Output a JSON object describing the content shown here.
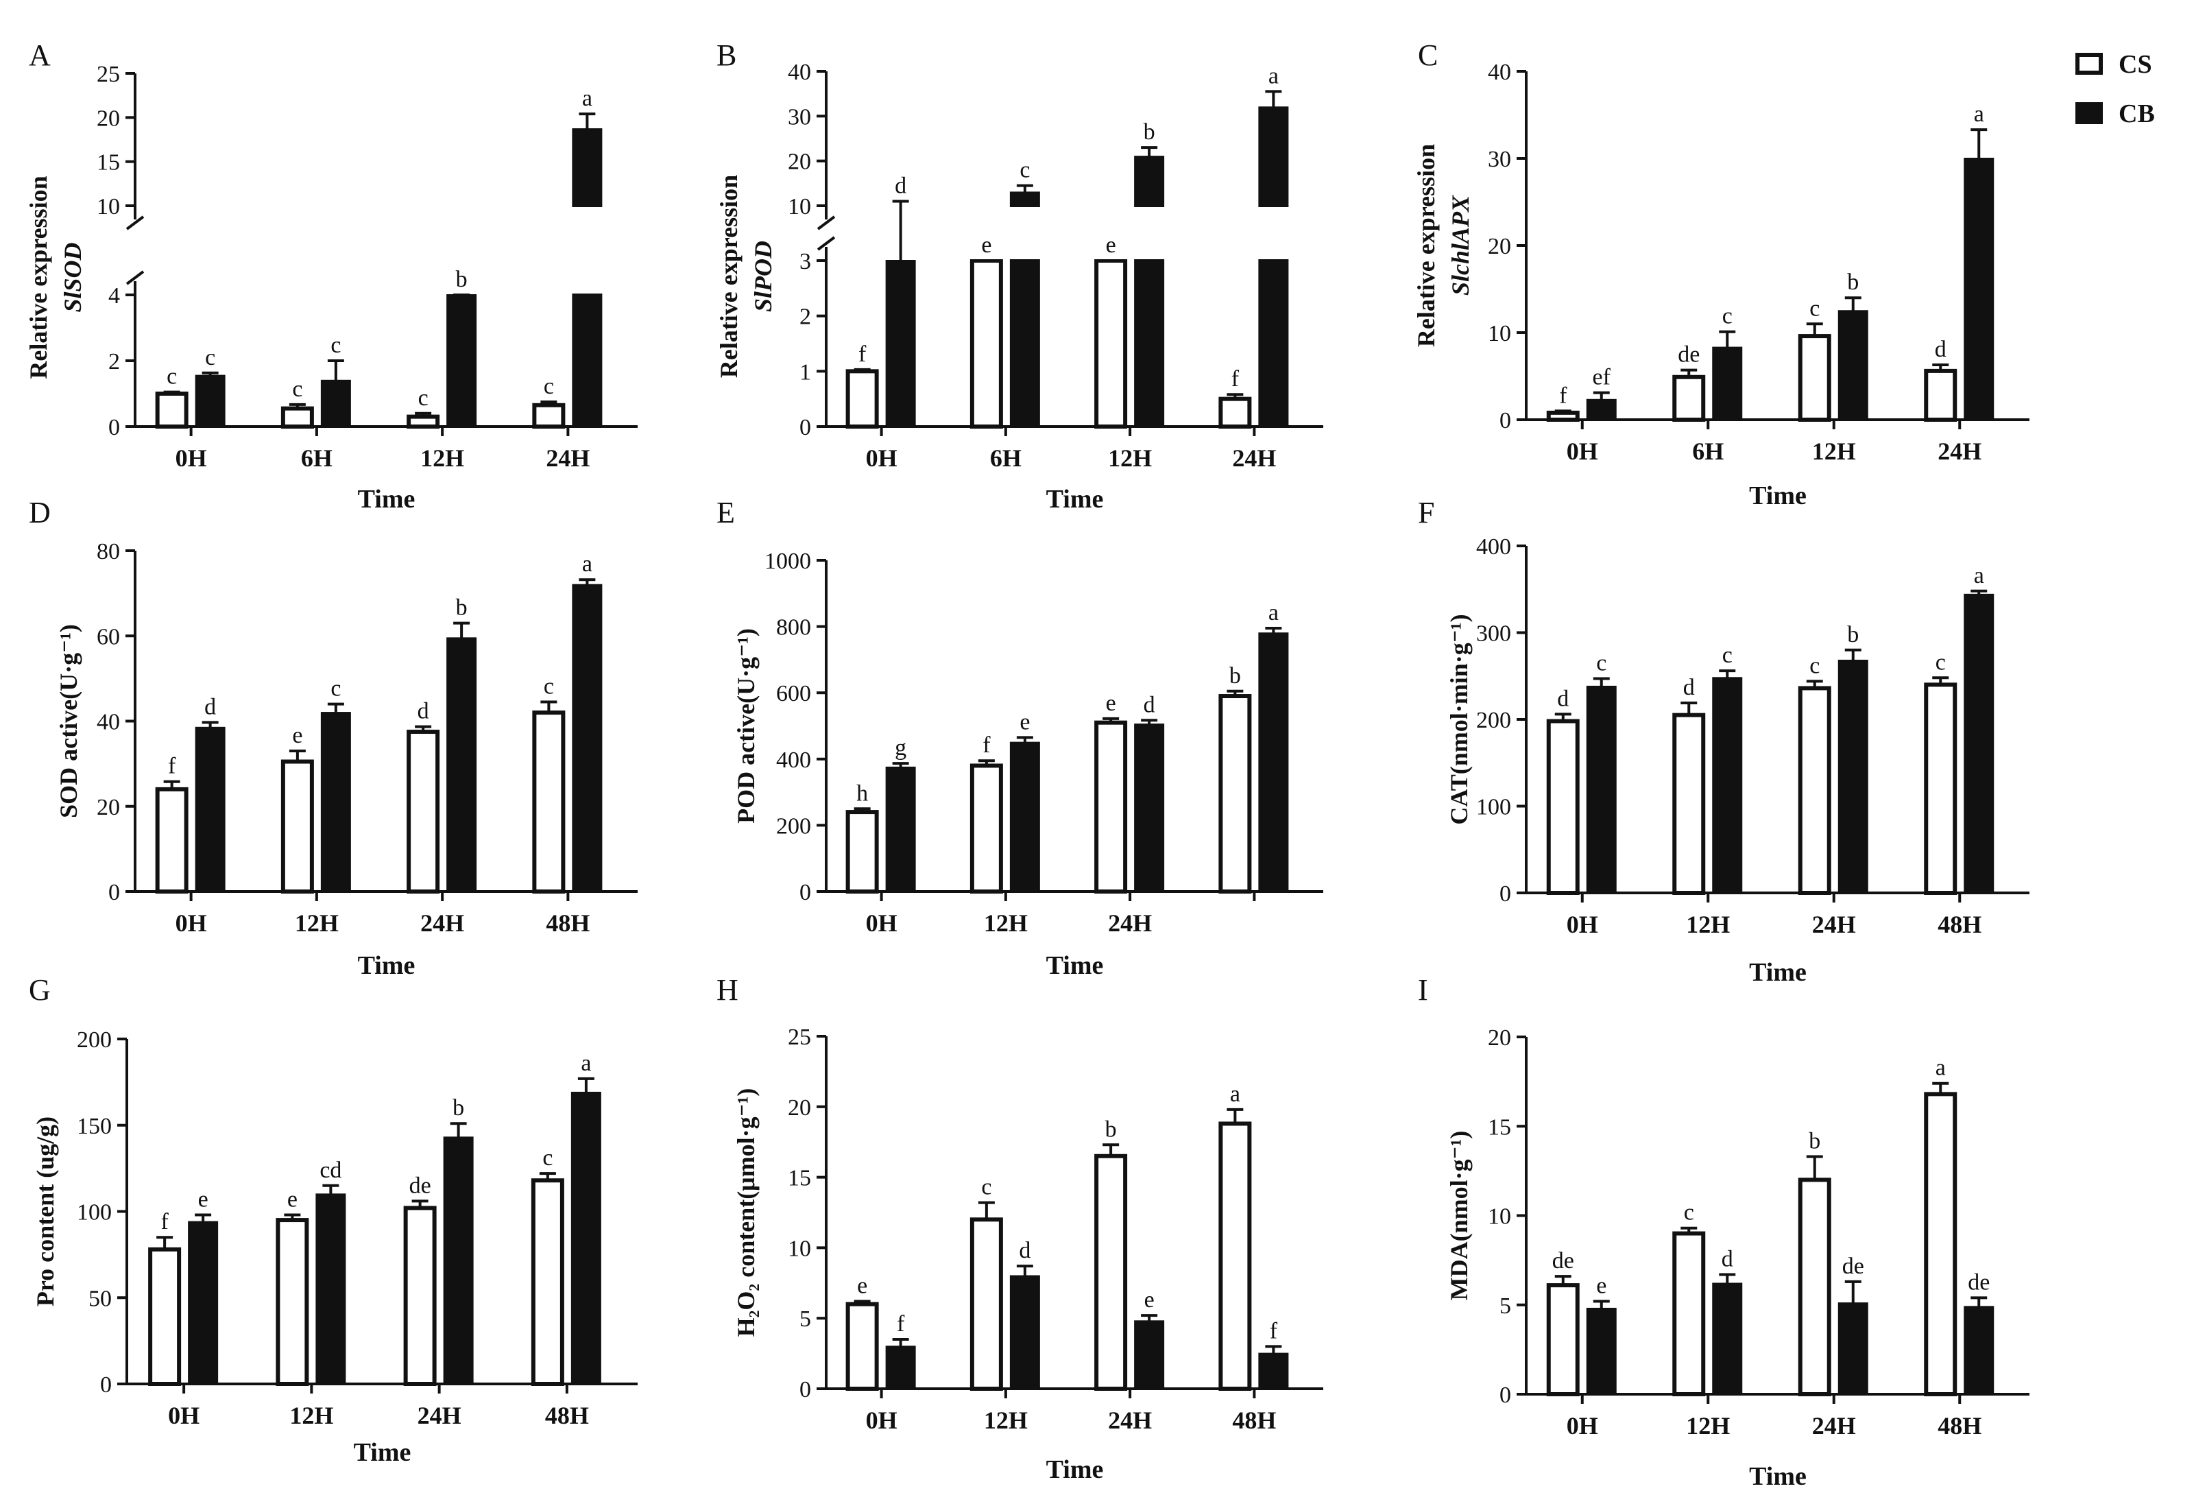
{
  "legend": {
    "items": [
      {
        "label": "CS",
        "fill": "#ffffff"
      },
      {
        "label": "CB",
        "fill": "#111111"
      }
    ]
  },
  "chart_data": [
    {
      "panel": "A",
      "type": "bar",
      "ylabel": [
        "Relative expression",
        "SlSOD"
      ],
      "xlabel": "Time",
      "categories": [
        "0H",
        "6H",
        "12H",
        "24H"
      ],
      "axis_break": {
        "lower_range": [
          0,
          4
        ],
        "upper_range": [
          10,
          25
        ],
        "lower_ticks": [
          0,
          2,
          4
        ],
        "upper_ticks": [
          10,
          15,
          20,
          25
        ]
      },
      "series": [
        {
          "name": "CS",
          "values": [
            1.0,
            0.55,
            0.3,
            0.65
          ],
          "errors": [
            0.05,
            0.12,
            0.1,
            0.1
          ],
          "letters": [
            "c",
            "c",
            "c",
            "c"
          ]
        },
        {
          "name": "CB",
          "values": [
            1.55,
            1.4,
            8.0,
            18.7
          ],
          "errors": [
            0.08,
            0.6,
            1.2,
            1.7
          ],
          "letters": [
            "c",
            "c",
            "b",
            "a"
          ]
        }
      ]
    },
    {
      "panel": "B",
      "type": "bar",
      "ylabel": [
        "Relative expression",
        "SlPOD"
      ],
      "xlabel": "Time",
      "categories": [
        "0H",
        "6H",
        "12H",
        "24H"
      ],
      "axis_break": {
        "lower_range": [
          0,
          3
        ],
        "upper_range": [
          10,
          40
        ],
        "lower_ticks": [
          0,
          1,
          2,
          3
        ],
        "upper_ticks": [
          10,
          20,
          30,
          40
        ]
      },
      "series": [
        {
          "name": "CS",
          "values": [
            1.0,
            5.0,
            4.5,
            0.5
          ],
          "errors": [
            0.03,
            1.0,
            0.9,
            0.08
          ],
          "letters": [
            "f",
            "e",
            "e",
            "f"
          ]
        },
        {
          "name": "CB",
          "values": [
            8.5,
            13.0,
            21.0,
            32.0
          ],
          "errors": [
            2.5,
            1.5,
            2.0,
            3.5
          ],
          "letters": [
            "d",
            "c",
            "b",
            "a"
          ]
        }
      ]
    },
    {
      "panel": "C",
      "type": "bar",
      "ylabel": [
        "Relative expression",
        "SlchlAPX"
      ],
      "xlabel": "Time",
      "categories": [
        "0H",
        "6H",
        "12H",
        "24H"
      ],
      "ylim": [
        0,
        40
      ],
      "yticks": [
        0,
        10,
        20,
        30,
        40
      ],
      "series": [
        {
          "name": "CS",
          "values": [
            0.8,
            4.9,
            9.6,
            5.6
          ],
          "errors": [
            0.2,
            0.8,
            1.4,
            0.7
          ],
          "letters": [
            "f",
            "de",
            "c",
            "d"
          ]
        },
        {
          "name": "CB",
          "values": [
            2.3,
            8.3,
            12.5,
            30.0
          ],
          "errors": [
            0.8,
            1.8,
            1.5,
            3.3
          ],
          "letters": [
            "ef",
            "c",
            "b",
            "a"
          ]
        }
      ]
    },
    {
      "panel": "D",
      "type": "bar",
      "ylabel": [
        "SOD active(U·g⁻¹)"
      ],
      "xlabel": "Time",
      "categories": [
        "0H",
        "12H",
        "24H",
        "48H"
      ],
      "ylim": [
        0,
        80
      ],
      "yticks": [
        0,
        20,
        40,
        60,
        80
      ],
      "series": [
        {
          "name": "CS",
          "values": [
            24,
            30.5,
            37.5,
            42
          ],
          "errors": [
            1.8,
            2.5,
            1.2,
            2.5
          ],
          "letters": [
            "f",
            "e",
            "d",
            "c"
          ]
        },
        {
          "name": "CB",
          "values": [
            38.5,
            42,
            59.5,
            72
          ],
          "errors": [
            1.2,
            2.0,
            3.5,
            1.2
          ],
          "letters": [
            "d",
            "c",
            "b",
            "a"
          ]
        }
      ]
    },
    {
      "panel": "E",
      "type": "bar",
      "ylabel": [
        "POD active(U·g⁻¹)"
      ],
      "xlabel": "Time",
      "categories": [
        "0H",
        "12H",
        "24H",
        ""
      ],
      "ylim": [
        0,
        1000
      ],
      "yticks": [
        0,
        200,
        400,
        600,
        800,
        1000
      ],
      "series": [
        {
          "name": "CS",
          "values": [
            240,
            380,
            510,
            590
          ],
          "errors": [
            10,
            15,
            12,
            15
          ],
          "letters": [
            "h",
            "f",
            "e",
            "b"
          ]
        },
        {
          "name": "CB",
          "values": [
            375,
            450,
            505,
            780
          ],
          "errors": [
            12,
            15,
            12,
            15
          ],
          "letters": [
            "g",
            "e",
            "d",
            "a"
          ]
        }
      ]
    },
    {
      "panel": "F",
      "type": "bar",
      "ylabel": [
        "CAT(nmol·min·g⁻¹)"
      ],
      "xlabel": "Time",
      "categories": [
        "0H",
        "12H",
        "24H",
        "48H"
      ],
      "ylim": [
        0,
        400
      ],
      "yticks": [
        0,
        100,
        200,
        300,
        400
      ],
      "series": [
        {
          "name": "CS",
          "values": [
            198,
            205,
            236,
            240
          ],
          "errors": [
            8,
            14,
            8,
            8
          ],
          "letters": [
            "d",
            "d",
            "c",
            "c"
          ]
        },
        {
          "name": "CB",
          "values": [
            238,
            248,
            268,
            344
          ],
          "errors": [
            9,
            8,
            12,
            4
          ],
          "letters": [
            "c",
            "c",
            "b",
            "a"
          ]
        }
      ]
    },
    {
      "panel": "G",
      "type": "bar",
      "ylabel": [
        "Pro content (ug/g)"
      ],
      "xlabel": "Time",
      "categories": [
        "0H",
        "12H",
        "24H",
        "48H"
      ],
      "ylim": [
        0,
        200
      ],
      "yticks": [
        0,
        50,
        100,
        150,
        200
      ],
      "series": [
        {
          "name": "CS",
          "values": [
            78,
            95,
            102,
            118
          ],
          "errors": [
            7,
            3,
            4,
            4
          ],
          "letters": [
            "f",
            "e",
            "de",
            "c"
          ]
        },
        {
          "name": "CB",
          "values": [
            94,
            110,
            143,
            169
          ],
          "errors": [
            4,
            5,
            8,
            8
          ],
          "letters": [
            "e",
            "cd",
            "b",
            "a"
          ]
        }
      ]
    },
    {
      "panel": "H",
      "type": "bar",
      "ylabel": [
        "H₂O₂ content(μmol·g⁻¹)"
      ],
      "xlabel": "Time",
      "categories": [
        "0H",
        "12H",
        "24H",
        "48H"
      ],
      "ylim": [
        0,
        25
      ],
      "yticks": [
        0,
        5,
        10,
        15,
        20,
        25
      ],
      "series": [
        {
          "name": "CS",
          "values": [
            6.0,
            12.0,
            16.5,
            18.8
          ],
          "errors": [
            0.2,
            1.2,
            0.8,
            1.0
          ],
          "letters": [
            "e",
            "c",
            "b",
            "a"
          ]
        },
        {
          "name": "CB",
          "values": [
            3.0,
            8.0,
            4.8,
            2.5
          ],
          "errors": [
            0.5,
            0.7,
            0.4,
            0.5
          ],
          "letters": [
            "f",
            "d",
            "e",
            "f"
          ]
        }
      ]
    },
    {
      "panel": "I",
      "type": "bar",
      "ylabel": [
        "MDA(nmol·g⁻¹)"
      ],
      "xlabel": "Time",
      "categories": [
        "0H",
        "12H",
        "24H",
        "48H"
      ],
      "ylim": [
        0,
        20
      ],
      "yticks": [
        0,
        5,
        10,
        15,
        20
      ],
      "series": [
        {
          "name": "CS",
          "values": [
            6.1,
            9.0,
            12.0,
            16.8
          ],
          "errors": [
            0.5,
            0.3,
            1.3,
            0.6
          ],
          "letters": [
            "de",
            "c",
            "b",
            "a"
          ]
        },
        {
          "name": "CB",
          "values": [
            4.8,
            6.2,
            5.1,
            4.9
          ],
          "errors": [
            0.4,
            0.5,
            1.2,
            0.5
          ],
          "letters": [
            "e",
            "d",
            "de",
            "de"
          ]
        }
      ]
    }
  ]
}
